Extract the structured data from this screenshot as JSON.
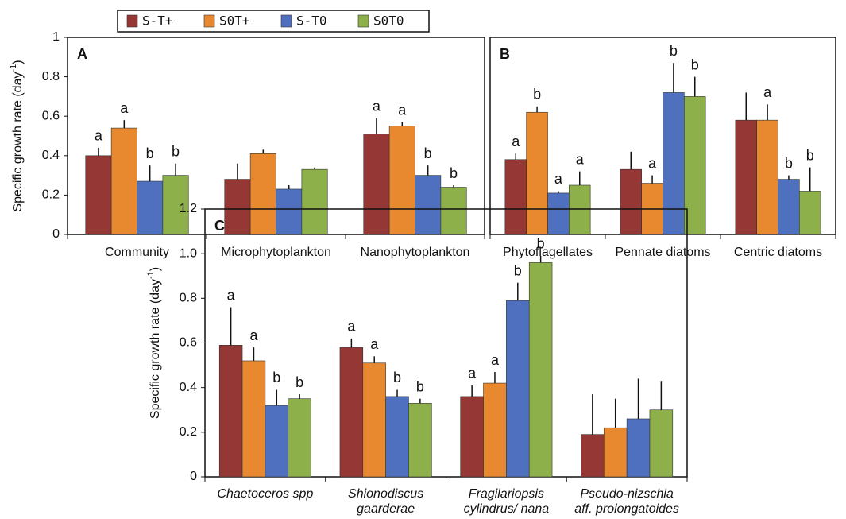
{
  "chart_data": [
    {
      "type": "bar",
      "panel": "A",
      "ylabel": [
        "Specific growth rate (day",
        "-1",
        ")"
      ],
      "categories": [
        [
          "Community"
        ],
        [
          "Microphytoplankton"
        ],
        [
          "Nanophytoplankton"
        ]
      ],
      "ylim": [
        0,
        1
      ],
      "yticks": [
        0,
        0.2,
        0.4,
        0.6,
        0.8,
        1
      ],
      "series": [
        {
          "name": "S-T+",
          "color": "#953735",
          "values": [
            0.4,
            0.28,
            0.51
          ],
          "errors": [
            0.04,
            0.08,
            0.08
          ],
          "annotations": [
            "a",
            null,
            "a"
          ]
        },
        {
          "name": "S0T+",
          "color": "#e8892f",
          "values": [
            0.54,
            0.41,
            0.55
          ],
          "errors": [
            0.04,
            0.02,
            0.02
          ],
          "annotations": [
            "a",
            null,
            "a"
          ]
        },
        {
          "name": "S-T0",
          "color": "#4f6fbf",
          "values": [
            0.27,
            0.23,
            0.3
          ],
          "errors": [
            0.08,
            0.02,
            0.05
          ],
          "annotations": [
            "b",
            null,
            "b"
          ]
        },
        {
          "name": "S0T0",
          "color": "#8db04a",
          "values": [
            0.3,
            0.33,
            0.24
          ],
          "errors": [
            0.06,
            0.01,
            0.01
          ],
          "annotations": [
            "b",
            null,
            "b"
          ]
        }
      ]
    },
    {
      "type": "bar",
      "panel": "B",
      "categories": [
        [
          "Phytoflagellates"
        ],
        [
          "Pennate diatoms"
        ],
        [
          "Centric diatoms"
        ]
      ],
      "ylim": [
        0,
        1
      ],
      "series": [
        {
          "color": "#953735",
          "values": [
            0.38,
            0.33,
            0.58
          ],
          "errors": [
            0.03,
            0.09,
            0.14
          ],
          "annotations": [
            "a",
            null,
            null
          ]
        },
        {
          "color": "#e8892f",
          "values": [
            0.62,
            0.26,
            0.58
          ],
          "errors": [
            0.03,
            0.04,
            0.08
          ],
          "annotations": [
            "b",
            "a",
            "a"
          ]
        },
        {
          "color": "#4f6fbf",
          "values": [
            0.21,
            0.72,
            0.28
          ],
          "errors": [
            0.01,
            0.15,
            0.02
          ],
          "annotations": [
            "a",
            "b",
            "b"
          ]
        },
        {
          "color": "#8db04a",
          "values": [
            0.25,
            0.7,
            0.22
          ],
          "errors": [
            0.07,
            0.1,
            0.12
          ],
          "annotations": [
            "a",
            "b",
            "b"
          ]
        }
      ]
    },
    {
      "type": "bar",
      "panel": "C",
      "ylabel": [
        "Specific growth rate (day",
        "-1",
        ")"
      ],
      "categories": [
        [
          "Chaetoceros spp"
        ],
        [
          "Shionodiscus",
          "gaarderae"
        ],
        [
          "Fragilariopsis",
          "cylindrus/ nana"
        ],
        [
          "Pseudo-nizschia",
          "aff. prolongatoides"
        ]
      ],
      "ylim": [
        0,
        1.2
      ],
      "yticks": [
        0,
        0.2,
        0.4,
        0.6,
        0.8,
        {
          "value": 1.0,
          "label": "1.0"
        },
        1.2
      ],
      "series": [
        {
          "color": "#953735",
          "values": [
            0.59,
            0.58,
            0.36,
            0.19
          ],
          "errors": [
            0.17,
            0.04,
            0.05,
            0.18
          ],
          "annotations": [
            "a",
            "a",
            "a",
            null
          ]
        },
        {
          "color": "#e8892f",
          "values": [
            0.52,
            0.51,
            0.42,
            0.22
          ],
          "errors": [
            0.06,
            0.03,
            0.05,
            0.13
          ],
          "annotations": [
            "a",
            "a",
            "a",
            null
          ]
        },
        {
          "color": "#4f6fbf",
          "values": [
            0.32,
            0.36,
            0.79,
            0.26
          ],
          "errors": [
            0.07,
            0.03,
            0.08,
            0.18
          ],
          "annotations": [
            "b",
            "b",
            "b",
            null
          ]
        },
        {
          "color": "#8db04a",
          "values": [
            0.35,
            0.33,
            0.96,
            0.3
          ],
          "errors": [
            0.02,
            0.02,
            0.03,
            0.13
          ],
          "annotations": [
            "b",
            "b",
            "b",
            null
          ]
        }
      ]
    }
  ]
}
